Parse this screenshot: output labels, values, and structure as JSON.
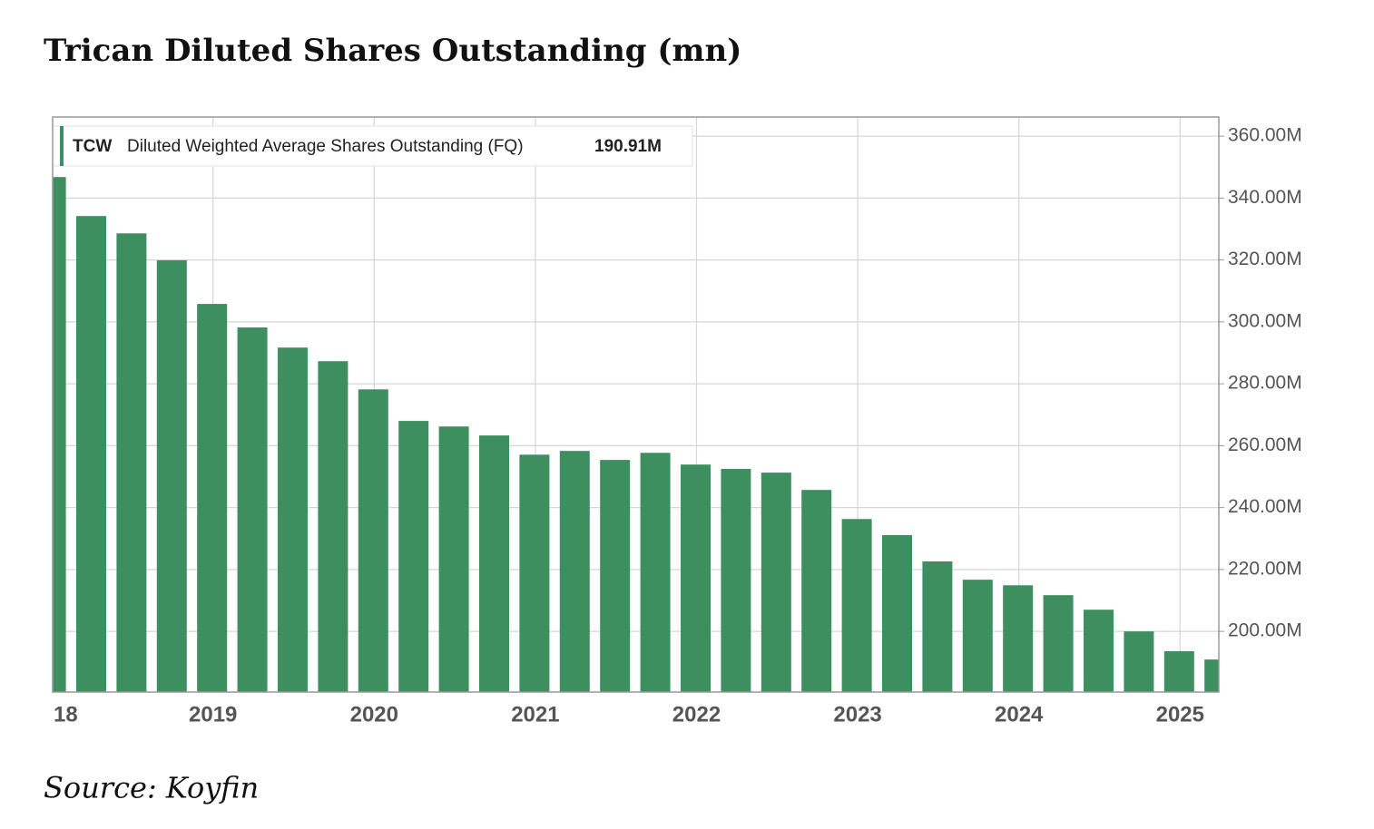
{
  "chart_data": {
    "type": "bar",
    "title": "Trican Diluted Shares Outstanding (mn)",
    "ticker": "TCW",
    "series_name": "Diluted Weighted Average Shares Outstanding (FQ)",
    "source": "Source: Koyfin",
    "categories": [
      "18",
      null,
      null,
      null,
      "2019",
      null,
      null,
      null,
      "2020",
      null,
      null,
      null,
      "2021",
      null,
      null,
      null,
      "2022",
      null,
      null,
      null,
      "2023",
      null,
      null,
      null,
      "2024",
      null,
      null,
      null,
      "2025",
      null
    ],
    "values": [
      346.8,
      334.2,
      328.6,
      319.9,
      305.8,
      298.2,
      291.7,
      287.3,
      278.2,
      268.0,
      266.2,
      263.3,
      257.1,
      258.3,
      255.4,
      257.7,
      253.9,
      252.5,
      251.3,
      245.7,
      236.3,
      231.1,
      222.6,
      216.7,
      214.9,
      211.7,
      207.0,
      200.0,
      193.6,
      190.91
    ],
    "value_labels": [
      null,
      null,
      null,
      null,
      null,
      null,
      null,
      null,
      null,
      null,
      null,
      null,
      null,
      null,
      null,
      null,
      null,
      null,
      null,
      null,
      null,
      null,
      null,
      null,
      null,
      null,
      null,
      null,
      null,
      "190.91M"
    ],
    "color": "#3d8f5f",
    "ylim": [
      180.4,
      366.2
    ],
    "yticks": [
      {
        "value": 200,
        "label": "200.00M"
      },
      {
        "value": 220,
        "label": "220.00M"
      },
      {
        "value": 240,
        "label": "240.00M"
      },
      {
        "value": 260,
        "label": "260.00M"
      },
      {
        "value": 280,
        "label": "280.00M"
      },
      {
        "value": 300,
        "label": "300.00M"
      },
      {
        "value": 320,
        "label": "320.00M"
      },
      {
        "value": 340,
        "label": "340.00M"
      },
      {
        "value": 360,
        "label": "360.00M"
      }
    ],
    "grid": true
  }
}
